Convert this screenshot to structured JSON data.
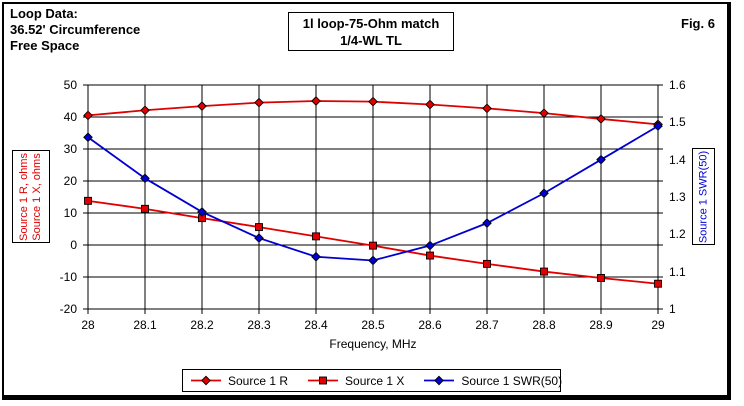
{
  "annotation": {
    "line1": "Loop Data:",
    "line2": "36.52' Circumference",
    "line3": "Free Space"
  },
  "title_box": {
    "line1": "1l loop-75-Ohm match",
    "line2": "1/4-WL TL"
  },
  "fig_label": "Fig. 6",
  "axis_labels": {
    "left_line1": "Source 1 R, ohms",
    "left_line2": "Source 1 X, ohms",
    "right": "Source 1 SWR(50)",
    "x": "Frequency, MHz"
  },
  "colors": {
    "series_red": "#e00000",
    "series_blue": "#0000d0",
    "grid": "#000000",
    "background": "#ffffff"
  },
  "legend": {
    "items": [
      {
        "label": "Source 1 R",
        "color": "#e00000",
        "marker": "diamond"
      },
      {
        "label": "Source 1 X",
        "color": "#e00000",
        "marker": "square"
      },
      {
        "label": "Source 1 SWR(50)",
        "color": "#0000d0",
        "marker": "diamond"
      }
    ]
  },
  "chart_data": {
    "type": "line",
    "title": "1l loop-75-Ohm match 1/4-WL TL",
    "xlabel": "Frequency, MHz",
    "grid": true,
    "legend_position": "bottom",
    "x": [
      28,
      28.1,
      28.2,
      28.3,
      28.4,
      28.5,
      28.6,
      28.7,
      28.8,
      28.9,
      29
    ],
    "x_axis": {
      "min": 28,
      "max": 29,
      "ticks": [
        28,
        28.1,
        28.2,
        28.3,
        28.4,
        28.5,
        28.6,
        28.7,
        28.8,
        28.9,
        29
      ],
      "tick_labels": [
        "28",
        "28.1",
        "28.2",
        "28.3",
        "28.4",
        "28.5",
        "28.6",
        "28.7",
        "28.8",
        "28.9",
        "29"
      ]
    },
    "left_axis": {
      "label": "Source 1 R, ohms / Source 1 X, ohms",
      "min": -20,
      "max": 50,
      "ticks": [
        50,
        40,
        30,
        20,
        10,
        0,
        -10,
        -20
      ],
      "tick_labels": [
        "50",
        "40",
        "30",
        "20",
        "10",
        "0",
        "-10",
        "-20"
      ]
    },
    "right_axis": {
      "label": "Source 1 SWR(50)",
      "min": 1,
      "max": 1.6,
      "ticks": [
        1.6,
        1.5,
        1.4,
        1.3,
        1.2,
        1.1,
        1
      ],
      "tick_labels": [
        "1.6",
        "1.5",
        "1.4",
        "1.3",
        "1.2",
        "1.1",
        "1"
      ]
    },
    "series": [
      {
        "name": "Source 1 R",
        "axis": "left",
        "color": "#e00000",
        "marker": "diamond",
        "values": [
          40.5,
          42.1,
          43.4,
          44.5,
          45.0,
          44.8,
          43.9,
          42.7,
          41.2,
          39.4,
          37.7
        ]
      },
      {
        "name": "Source 1 X",
        "axis": "left",
        "color": "#e00000",
        "marker": "square",
        "values": [
          13.8,
          11.3,
          8.4,
          5.6,
          2.7,
          -0.2,
          -3.3,
          -5.9,
          -8.3,
          -10.3,
          -12.1
        ]
      },
      {
        "name": "Source 1 SWR(50)",
        "axis": "right",
        "color": "#0000d0",
        "marker": "diamond",
        "values": [
          1.46,
          1.35,
          1.26,
          1.19,
          1.14,
          1.13,
          1.17,
          1.23,
          1.31,
          1.4,
          1.49
        ]
      }
    ]
  }
}
